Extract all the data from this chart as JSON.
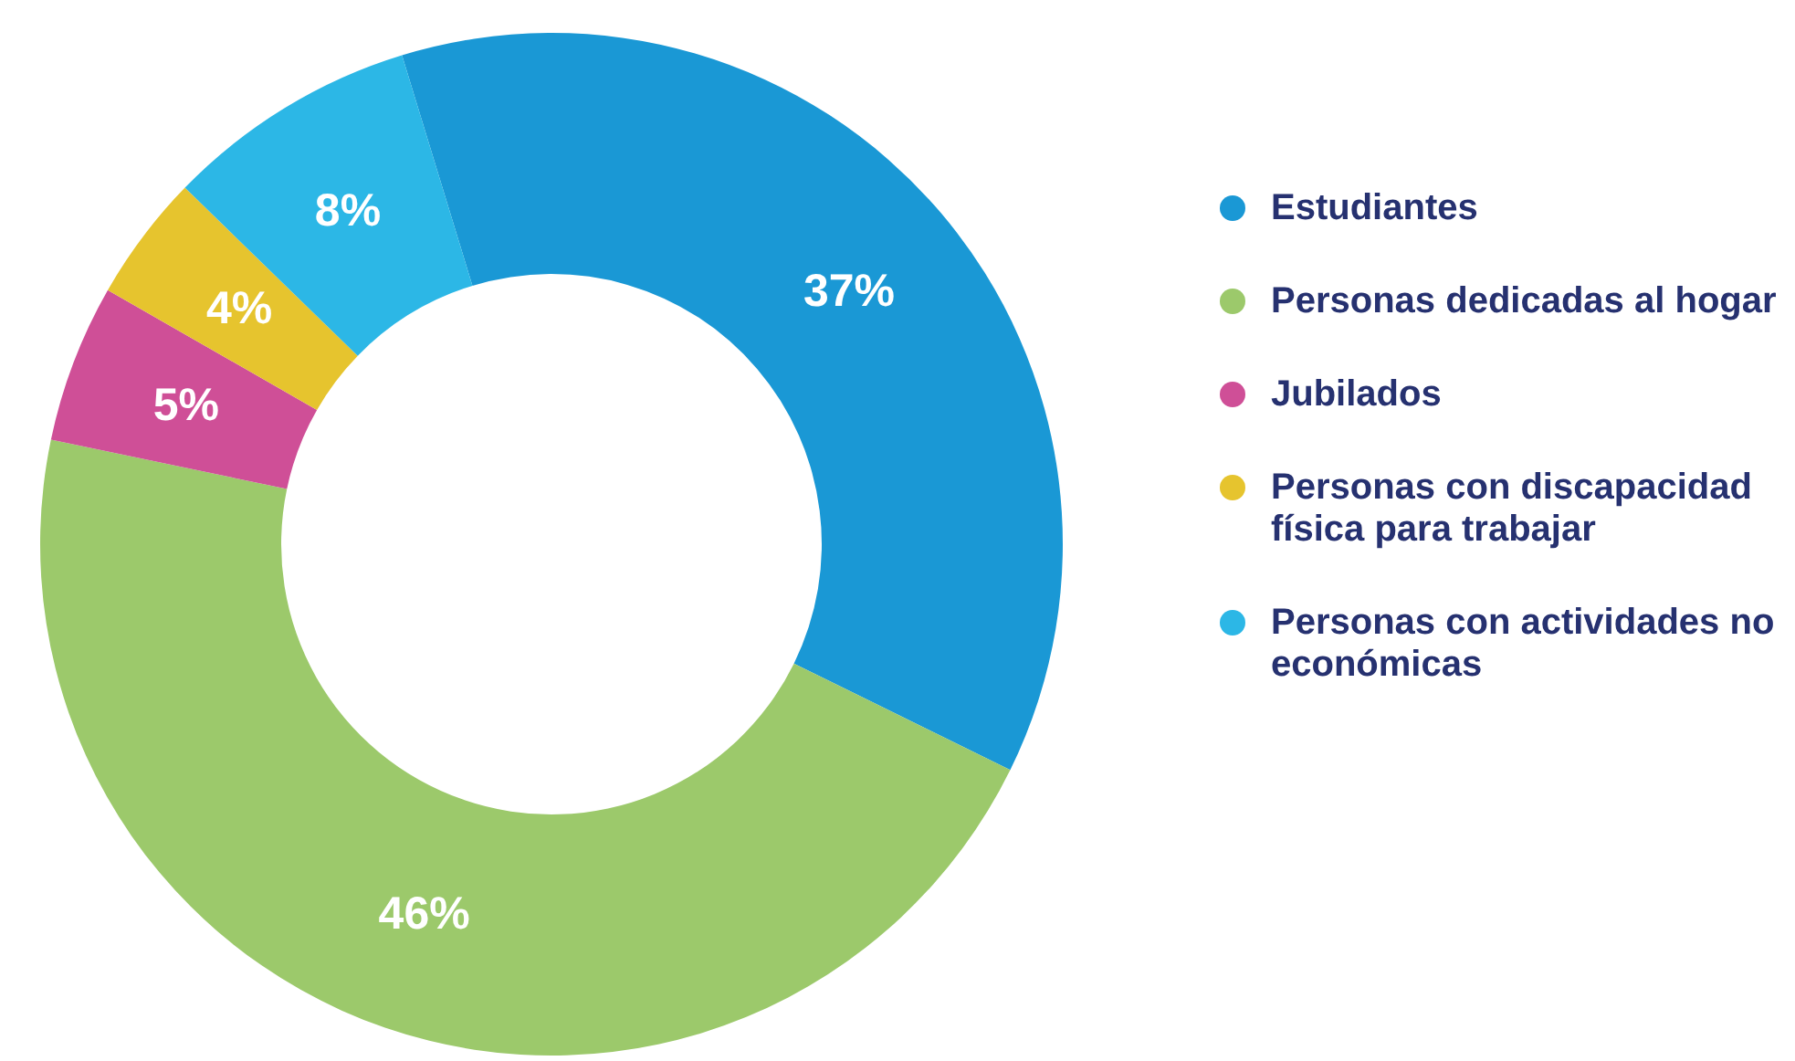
{
  "chart_data": {
    "type": "donut",
    "categories": [
      "Estudiantes",
      "Personas dedicadas al hogar",
      "Jubilados",
      "Personas con discapacidad física para trabajar",
      "Personas con actividades no económicas"
    ],
    "values": [
      37,
      46,
      5,
      4,
      8
    ],
    "value_labels": [
      "37%",
      "46%",
      "5%",
      "4%",
      "8%"
    ],
    "colors": [
      "#1a98d5",
      "#9cc96b",
      "#cf4f97",
      "#e6c42e",
      "#2cb7e6"
    ],
    "legend": "right"
  }
}
